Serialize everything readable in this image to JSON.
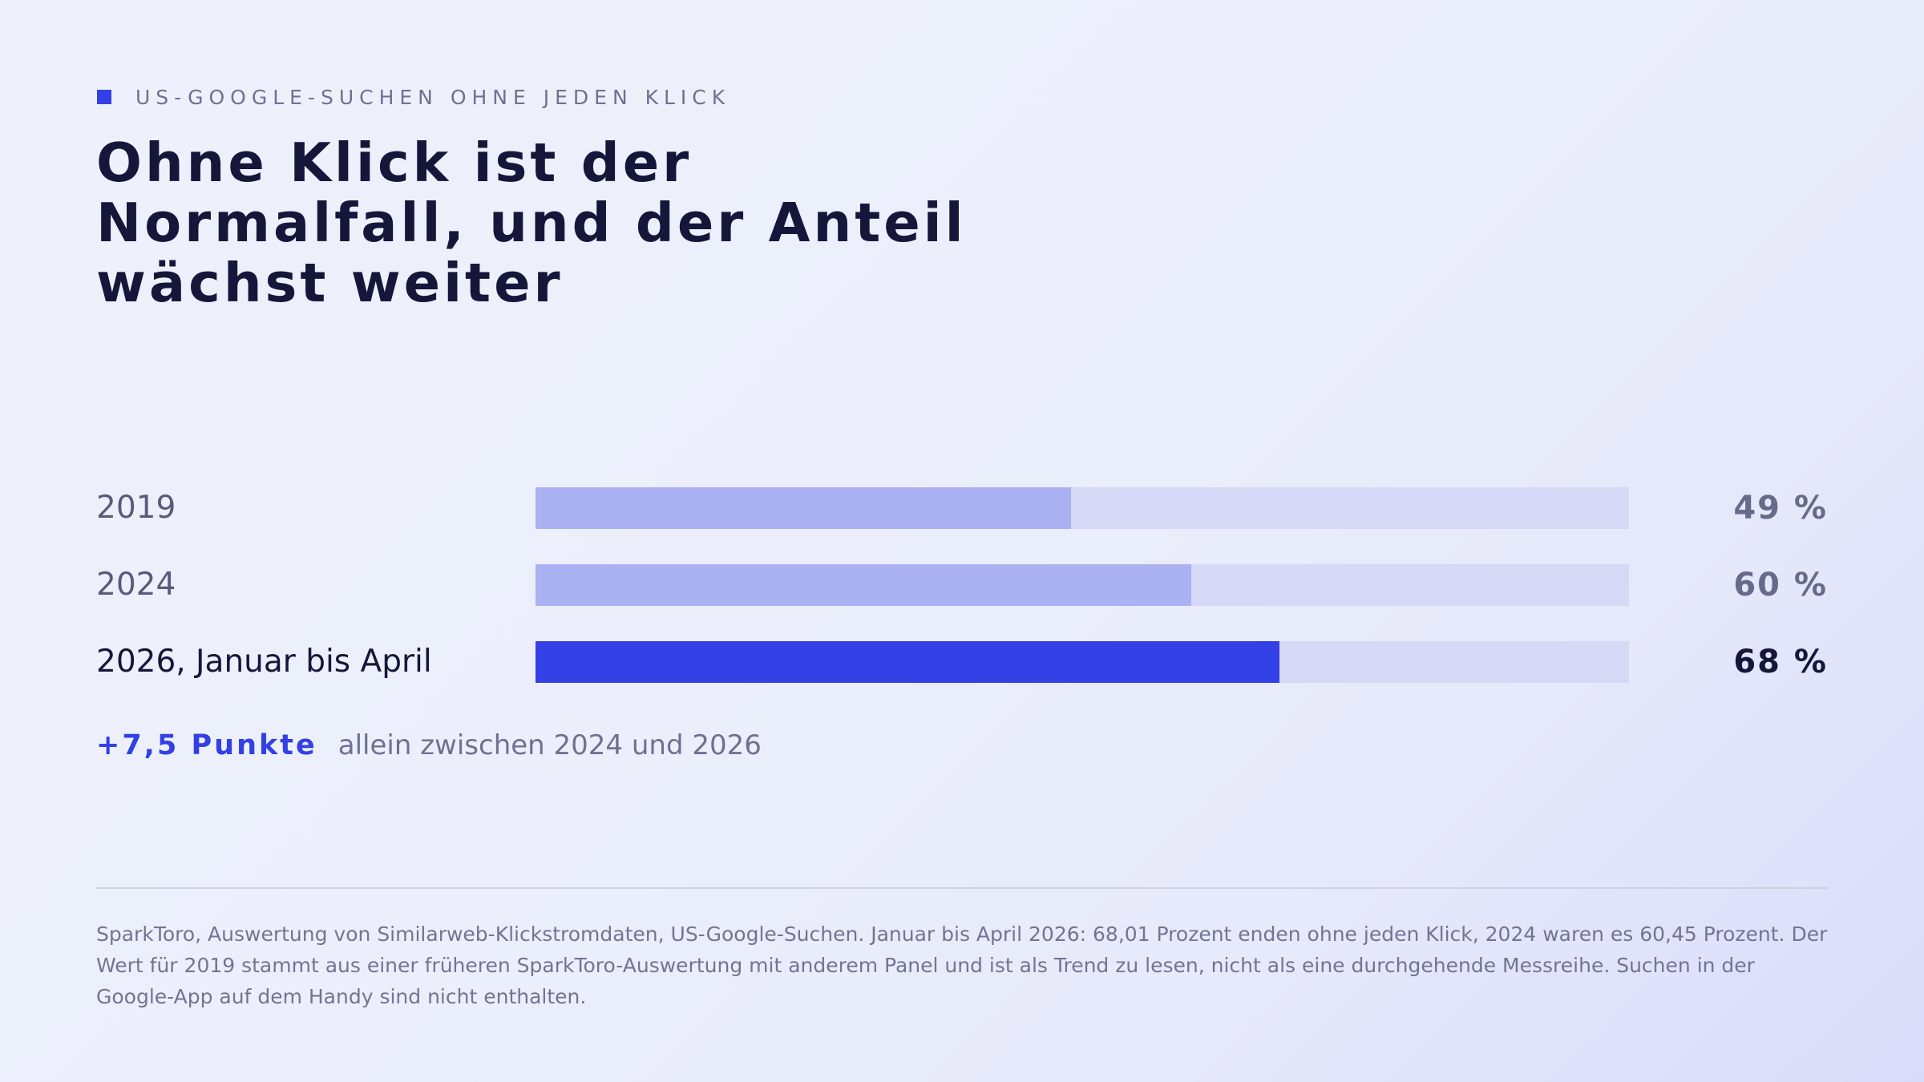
{
  "header": {
    "eyebrow": "US-GOOGLE-SUCHEN OHNE JEDEN KLICK",
    "title": "Ohne Klick ist der Normalfall, und der Anteil wächst weiter"
  },
  "chart_data": {
    "type": "bar",
    "orientation": "horizontal",
    "categories": [
      "2019",
      "2024",
      "2026, Januar bis April"
    ],
    "values": [
      49,
      60,
      68
    ],
    "value_labels": [
      "49 %",
      "60 %",
      "68 %"
    ],
    "xlim": [
      0,
      100
    ],
    "highlight_index": 2,
    "grid": false,
    "legend": "none"
  },
  "annotation": {
    "highlight": "+7,5 Punkte",
    "text": "allein zwischen 2024 und 2026"
  },
  "footer": {
    "source": "SparkToro, Auswertung von Similarweb-Klickstromdaten, US-Google-Suchen. Januar bis April 2026: 68,01 Prozent enden ohne jeden Klick, 2024 waren es 60,45 Prozent. Der Wert für 2019 stammt aus einer früheren SparkToro-Auswertung mit anderem Panel und ist als Trend zu lesen, nicht als eine durchgehende Messreihe. Suchen in der Google-App auf dem Handy sind nicht enthalten."
  },
  "colors": {
    "accent": "#3340e6",
    "bar_muted": "#aab2f3",
    "track": "#d6d9f6",
    "title_text": "#15173a"
  }
}
